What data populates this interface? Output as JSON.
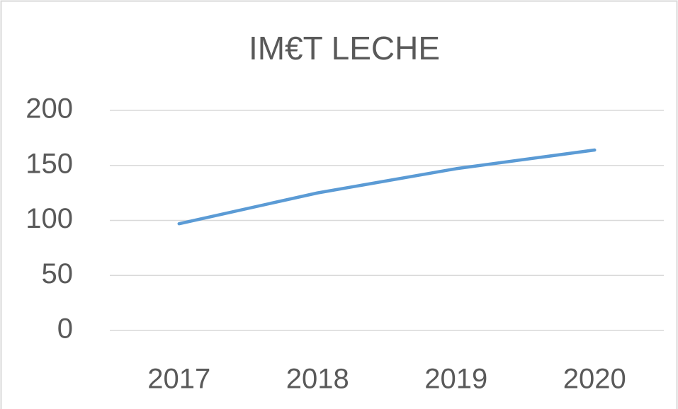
{
  "chart_data": {
    "type": "line",
    "title": "IM€T LECHE",
    "categories": [
      "2017",
      "2018",
      "2019",
      "2020"
    ],
    "series": [
      {
        "name": "IM€T LECHE",
        "color": "#5b9bd5",
        "values": [
          97,
          125,
          147,
          164
        ]
      }
    ],
    "ylim": [
      0,
      200
    ],
    "yticks": [
      0,
      50,
      100,
      150,
      200
    ],
    "grid": true
  }
}
